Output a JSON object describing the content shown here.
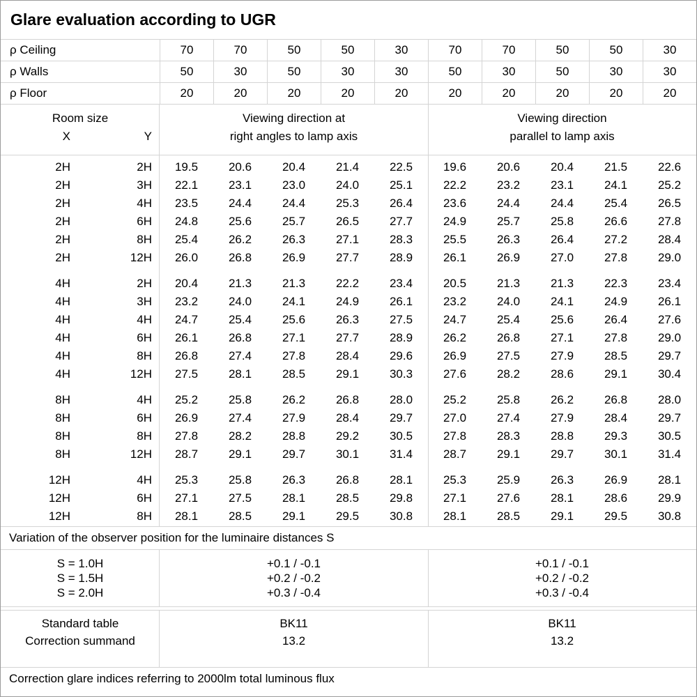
{
  "title": "Glare evaluation according to UGR",
  "colors": {
    "grid_line": "#d4d4d4",
    "outer_border": "#9b9b9b",
    "text": "#000000",
    "background": "#ffffff"
  },
  "reflectance": {
    "rows": [
      {
        "label": "ρ Ceiling",
        "values": [
          "70",
          "70",
          "50",
          "50",
          "30",
          "70",
          "70",
          "50",
          "50",
          "30"
        ]
      },
      {
        "label": "ρ Walls",
        "values": [
          "50",
          "30",
          "50",
          "30",
          "30",
          "50",
          "30",
          "50",
          "30",
          "30"
        ]
      },
      {
        "label": "ρ Floor",
        "values": [
          "20",
          "20",
          "20",
          "20",
          "20",
          "20",
          "20",
          "20",
          "20",
          "20"
        ]
      }
    ]
  },
  "header": {
    "room_size_label": "Room size",
    "x_label": "X",
    "y_label": "Y",
    "group1_line1": "Viewing direction at",
    "group1_line2": "right angles to lamp axis",
    "group2_line1": "Viewing direction",
    "group2_line2": "parallel to lamp axis"
  },
  "ugr_table": {
    "groups": [
      {
        "rows": [
          {
            "x": "2H",
            "y": "2H",
            "right_angles": [
              "19.5",
              "20.6",
              "20.4",
              "21.4",
              "22.5"
            ],
            "parallel": [
              "19.6",
              "20.6",
              "20.4",
              "21.5",
              "22.6"
            ]
          },
          {
            "x": "2H",
            "y": "3H",
            "right_angles": [
              "22.1",
              "23.1",
              "23.0",
              "24.0",
              "25.1"
            ],
            "parallel": [
              "22.2",
              "23.2",
              "23.1",
              "24.1",
              "25.2"
            ]
          },
          {
            "x": "2H",
            "y": "4H",
            "right_angles": [
              "23.5",
              "24.4",
              "24.4",
              "25.3",
              "26.4"
            ],
            "parallel": [
              "23.6",
              "24.4",
              "24.4",
              "25.4",
              "26.5"
            ]
          },
          {
            "x": "2H",
            "y": "6H",
            "right_angles": [
              "24.8",
              "25.6",
              "25.7",
              "26.5",
              "27.7"
            ],
            "parallel": [
              "24.9",
              "25.7",
              "25.8",
              "26.6",
              "27.8"
            ]
          },
          {
            "x": "2H",
            "y": "8H",
            "right_angles": [
              "25.4",
              "26.2",
              "26.3",
              "27.1",
              "28.3"
            ],
            "parallel": [
              "25.5",
              "26.3",
              "26.4",
              "27.2",
              "28.4"
            ]
          },
          {
            "x": "2H",
            "y": "12H",
            "right_angles": [
              "26.0",
              "26.8",
              "26.9",
              "27.7",
              "28.9"
            ],
            "parallel": [
              "26.1",
              "26.9",
              "27.0",
              "27.8",
              "29.0"
            ]
          }
        ]
      },
      {
        "rows": [
          {
            "x": "4H",
            "y": "2H",
            "right_angles": [
              "20.4",
              "21.3",
              "21.3",
              "22.2",
              "23.4"
            ],
            "parallel": [
              "20.5",
              "21.3",
              "21.3",
              "22.3",
              "23.4"
            ]
          },
          {
            "x": "4H",
            "y": "3H",
            "right_angles": [
              "23.2",
              "24.0",
              "24.1",
              "24.9",
              "26.1"
            ],
            "parallel": [
              "23.2",
              "24.0",
              "24.1",
              "24.9",
              "26.1"
            ]
          },
          {
            "x": "4H",
            "y": "4H",
            "right_angles": [
              "24.7",
              "25.4",
              "25.6",
              "26.3",
              "27.5"
            ],
            "parallel": [
              "24.7",
              "25.4",
              "25.6",
              "26.4",
              "27.6"
            ]
          },
          {
            "x": "4H",
            "y": "6H",
            "right_angles": [
              "26.1",
              "26.8",
              "27.1",
              "27.7",
              "28.9"
            ],
            "parallel": [
              "26.2",
              "26.8",
              "27.1",
              "27.8",
              "29.0"
            ]
          },
          {
            "x": "4H",
            "y": "8H",
            "right_angles": [
              "26.8",
              "27.4",
              "27.8",
              "28.4",
              "29.6"
            ],
            "parallel": [
              "26.9",
              "27.5",
              "27.9",
              "28.5",
              "29.7"
            ]
          },
          {
            "x": "4H",
            "y": "12H",
            "right_angles": [
              "27.5",
              "28.1",
              "28.5",
              "29.1",
              "30.3"
            ],
            "parallel": [
              "27.6",
              "28.2",
              "28.6",
              "29.1",
              "30.4"
            ]
          }
        ]
      },
      {
        "rows": [
          {
            "x": "8H",
            "y": "4H",
            "right_angles": [
              "25.2",
              "25.8",
              "26.2",
              "26.8",
              "28.0"
            ],
            "parallel": [
              "25.2",
              "25.8",
              "26.2",
              "26.8",
              "28.0"
            ]
          },
          {
            "x": "8H",
            "y": "6H",
            "right_angles": [
              "26.9",
              "27.4",
              "27.9",
              "28.4",
              "29.7"
            ],
            "parallel": [
              "27.0",
              "27.4",
              "27.9",
              "28.4",
              "29.7"
            ]
          },
          {
            "x": "8H",
            "y": "8H",
            "right_angles": [
              "27.8",
              "28.2",
              "28.8",
              "29.2",
              "30.5"
            ],
            "parallel": [
              "27.8",
              "28.3",
              "28.8",
              "29.3",
              "30.5"
            ]
          },
          {
            "x": "8H",
            "y": "12H",
            "right_angles": [
              "28.7",
              "29.1",
              "29.7",
              "30.1",
              "31.4"
            ],
            "parallel": [
              "28.7",
              "29.1",
              "29.7",
              "30.1",
              "31.4"
            ]
          }
        ]
      },
      {
        "rows": [
          {
            "x": "12H",
            "y": "4H",
            "right_angles": [
              "25.3",
              "25.8",
              "26.3",
              "26.8",
              "28.1"
            ],
            "parallel": [
              "25.3",
              "25.9",
              "26.3",
              "26.9",
              "28.1"
            ]
          },
          {
            "x": "12H",
            "y": "6H",
            "right_angles": [
              "27.1",
              "27.5",
              "28.1",
              "28.5",
              "29.8"
            ],
            "parallel": [
              "27.1",
              "27.6",
              "28.1",
              "28.6",
              "29.9"
            ]
          },
          {
            "x": "12H",
            "y": "8H",
            "right_angles": [
              "28.1",
              "28.5",
              "29.1",
              "29.5",
              "30.8"
            ],
            "parallel": [
              "28.1",
              "28.5",
              "29.1",
              "29.5",
              "30.8"
            ]
          }
        ]
      }
    ]
  },
  "variation_note": "Variation of the observer position for the luminaire distances S",
  "spacing_section": {
    "rows": [
      {
        "label": "S = 1.0H",
        "right_angles": "+0.1 / -0.1",
        "parallel": "+0.1 / -0.1"
      },
      {
        "label": "S = 1.5H",
        "right_angles": "+0.2 / -0.2",
        "parallel": "+0.2 / -0.2"
      },
      {
        "label": "S = 2.0H",
        "right_angles": "+0.3 / -0.4",
        "parallel": "+0.3 / -0.4"
      }
    ]
  },
  "standard_section": {
    "rows": [
      {
        "label": "Standard table",
        "right_angles": "BK11",
        "parallel": "BK11"
      },
      {
        "label": "Correction summand",
        "right_angles": "13.2",
        "parallel": "13.2"
      }
    ]
  },
  "footer_note": "Correction glare indices referring to 2000lm total luminous flux"
}
